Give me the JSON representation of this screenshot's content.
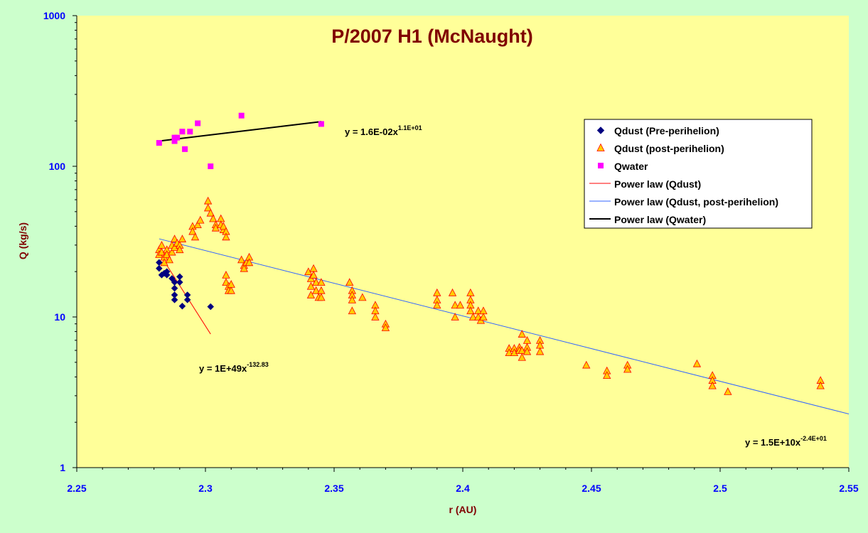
{
  "chart_data": {
    "type": "scatter",
    "title": "P/2007 H1 (McNaught)",
    "xlabel": "r (AU)",
    "ylabel": "Q (kg/s)",
    "xlim": [
      2.25,
      2.55
    ],
    "ylim": [
      1,
      1000
    ],
    "yscale": "log",
    "x_ticks": [
      "2.25",
      "2.3",
      "2.35",
      "2.4",
      "2.45",
      "2.5",
      "2.55"
    ],
    "y_ticks": [
      "1",
      "10",
      "100",
      "1000"
    ],
    "legend_position": "right",
    "colors": {
      "background": "#ccffcc",
      "plot_area": "#ffff99",
      "title": "#800000",
      "axis_label": "#800000",
      "tick_label": "#0000ff",
      "pre_perihelion": "#000080",
      "post_perihelion_fill": "#ffcc00",
      "post_perihelion_edge": "#ff0000",
      "water": "#ff00ff",
      "fit_dust": "#ff0000",
      "fit_post": "#3366ff",
      "fit_water": "#000000"
    },
    "series": [
      {
        "name": "Qdust (Pre-perihelion)",
        "marker": "diamond",
        "points": [
          [
            2.282,
            23
          ],
          [
            2.282,
            21
          ],
          [
            2.283,
            19
          ],
          [
            2.284,
            19.5
          ],
          [
            2.285,
            20
          ],
          [
            2.285,
            19
          ],
          [
            2.287,
            18
          ],
          [
            2.288,
            17
          ],
          [
            2.288,
            15.5
          ],
          [
            2.288,
            14
          ],
          [
            2.288,
            13
          ],
          [
            2.29,
            17
          ],
          [
            2.29,
            18.5
          ],
          [
            2.291,
            11.8
          ],
          [
            2.293,
            14
          ],
          [
            2.293,
            13
          ],
          [
            2.302,
            11.7
          ]
        ]
      },
      {
        "name": "Qdust (post-perihelion)",
        "marker": "triangle",
        "points": [
          [
            2.282,
            28
          ],
          [
            2.282,
            26
          ],
          [
            2.283,
            30
          ],
          [
            2.283,
            27
          ],
          [
            2.284,
            25
          ],
          [
            2.284,
            23
          ],
          [
            2.285,
            28
          ],
          [
            2.285,
            26
          ],
          [
            2.286,
            24
          ],
          [
            2.287,
            27
          ],
          [
            2.287,
            30
          ],
          [
            2.288,
            29
          ],
          [
            2.288,
            33
          ],
          [
            2.289,
            31
          ],
          [
            2.29,
            30
          ],
          [
            2.29,
            28
          ],
          [
            2.291,
            33
          ],
          [
            2.295,
            40
          ],
          [
            2.295,
            37
          ],
          [
            2.296,
            34
          ],
          [
            2.297,
            41
          ],
          [
            2.298,
            44
          ],
          [
            2.301,
            59
          ],
          [
            2.301,
            53
          ],
          [
            2.302,
            49
          ],
          [
            2.303,
            45
          ],
          [
            2.304,
            41
          ],
          [
            2.304,
            39
          ],
          [
            2.306,
            45
          ],
          [
            2.306,
            41
          ],
          [
            2.307,
            38
          ],
          [
            2.307,
            40
          ],
          [
            2.308,
            37
          ],
          [
            2.308,
            34
          ],
          [
            2.308,
            19
          ],
          [
            2.308,
            17
          ],
          [
            2.309,
            16
          ],
          [
            2.309,
            15
          ],
          [
            2.31,
            15
          ],
          [
            2.31,
            16.5
          ],
          [
            2.314,
            24
          ],
          [
            2.315,
            22
          ],
          [
            2.315,
            21
          ],
          [
            2.316,
            23
          ],
          [
            2.317,
            25
          ],
          [
            2.317,
            23
          ],
          [
            2.34,
            20
          ],
          [
            2.341,
            18
          ],
          [
            2.341,
            16
          ],
          [
            2.341,
            14
          ],
          [
            2.342,
            21
          ],
          [
            2.342,
            19
          ],
          [
            2.343,
            17
          ],
          [
            2.343,
            15
          ],
          [
            2.344,
            13.5
          ],
          [
            2.345,
            17
          ],
          [
            2.345,
            15
          ],
          [
            2.345,
            13.5
          ],
          [
            2.356,
            17
          ],
          [
            2.357,
            15
          ],
          [
            2.357,
            14
          ],
          [
            2.357,
            13
          ],
          [
            2.357,
            11
          ],
          [
            2.361,
            13.5
          ],
          [
            2.366,
            12
          ],
          [
            2.366,
            11
          ],
          [
            2.366,
            10
          ],
          [
            2.37,
            9
          ],
          [
            2.37,
            8.5
          ],
          [
            2.39,
            14.5
          ],
          [
            2.39,
            13
          ],
          [
            2.39,
            12
          ],
          [
            2.396,
            14.5
          ],
          [
            2.397,
            12
          ],
          [
            2.397,
            10
          ],
          [
            2.399,
            12
          ],
          [
            2.403,
            14.5
          ],
          [
            2.403,
            13
          ],
          [
            2.403,
            12
          ],
          [
            2.403,
            11
          ],
          [
            2.404,
            10
          ],
          [
            2.406,
            11
          ],
          [
            2.406,
            10
          ],
          [
            2.407,
            9.5
          ],
          [
            2.408,
            11
          ],
          [
            2.408,
            10
          ],
          [
            2.418,
            6.2
          ],
          [
            2.418,
            5.8
          ],
          [
            2.42,
            6.2
          ],
          [
            2.42,
            5.8
          ],
          [
            2.422,
            6.3
          ],
          [
            2.422,
            6.0
          ],
          [
            2.423,
            7.7
          ],
          [
            2.423,
            6.0
          ],
          [
            2.423,
            5.4
          ],
          [
            2.425,
            7.0
          ],
          [
            2.425,
            6.3
          ],
          [
            2.425,
            5.9
          ],
          [
            2.43,
            7.0
          ],
          [
            2.43,
            6.5
          ],
          [
            2.43,
            5.9
          ],
          [
            2.448,
            4.8
          ],
          [
            2.456,
            4.4
          ],
          [
            2.456,
            4.1
          ],
          [
            2.464,
            4.8
          ],
          [
            2.464,
            4.5
          ],
          [
            2.491,
            4.9
          ],
          [
            2.497,
            4.1
          ],
          [
            2.497,
            3.8
          ],
          [
            2.497,
            3.5
          ],
          [
            2.503,
            3.2
          ],
          [
            2.539,
            3.8
          ],
          [
            2.539,
            3.5
          ]
        ]
      },
      {
        "name": "Qwater",
        "marker": "square",
        "points": [
          [
            2.282,
            143
          ],
          [
            2.288,
            155
          ],
          [
            2.288,
            147
          ],
          [
            2.289,
            155
          ],
          [
            2.291,
            170
          ],
          [
            2.292,
            130
          ],
          [
            2.294,
            170
          ],
          [
            2.297,
            193
          ],
          [
            2.302,
            100
          ],
          [
            2.314,
            217
          ],
          [
            2.345,
            191
          ]
        ]
      }
    ],
    "fits": [
      {
        "name": "Power law (Qdust)",
        "equation_base": "y = 1E+49x",
        "equation_exp": "-132.83",
        "x_range": [
          2.282,
          2.302
        ],
        "y_range": [
          26.5,
          7.7
        ],
        "color": "#ff0000"
      },
      {
        "name": "Power law (Qdust, post-perihelion)",
        "equation_base": "y = 1.5E+10x",
        "equation_exp": "-2.4E+01",
        "x_range": [
          2.282,
          2.55
        ],
        "y_range": [
          33.0,
          2.27
        ],
        "color": "#3366ff"
      },
      {
        "name": "Power law (Qwater)",
        "equation_base": "y = 1.6E-02x",
        "equation_exp": "1.1E+01",
        "x_range": [
          2.282,
          2.345
        ],
        "y_range": [
          147,
          198
        ],
        "color": "#000000"
      }
    ]
  }
}
